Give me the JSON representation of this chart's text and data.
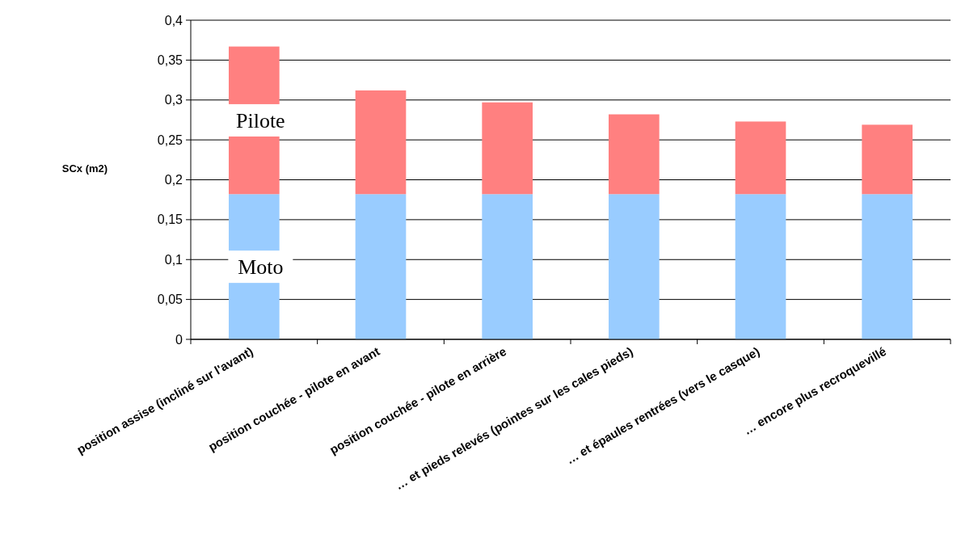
{
  "chart_data": {
    "type": "bar",
    "stacked": true,
    "ylabel": "SCx (m2)",
    "categories": [
      "position assise (incliné sur l'avant)",
      "position couchée - pilote en avant",
      "position couchée - pilote en arrière",
      "… et pieds relevés (pointes sur les cales pieds)",
      "… et épaules rentrées (vers le casque)",
      "… encore plus recroquevillé"
    ],
    "series": [
      {
        "name": "Moto",
        "color": "#99ccff",
        "values": [
          0.182,
          0.182,
          0.182,
          0.182,
          0.182,
          0.182
        ]
      },
      {
        "name": "Pilote",
        "color": "#ff8080",
        "values": [
          0.185,
          0.13,
          0.115,
          0.1,
          0.091,
          0.087
        ]
      }
    ],
    "ylim": [
      0,
      0.4
    ],
    "yticks": [
      0,
      {
        "value": 0.05,
        "label": "0,05"
      },
      {
        "value": 0.1,
        "label": "0,1"
      },
      {
        "value": 0.15,
        "label": "0,15"
      },
      {
        "value": 0.2,
        "label": "0,2"
      },
      {
        "value": 0.25,
        "label": "0,25"
      },
      {
        "value": 0.3,
        "label": "0,3"
      },
      {
        "value": 0.35,
        "label": "0,35"
      },
      {
        "value": 0.4,
        "label": "0,4"
      }
    ],
    "grid": "y",
    "legend": false
  }
}
